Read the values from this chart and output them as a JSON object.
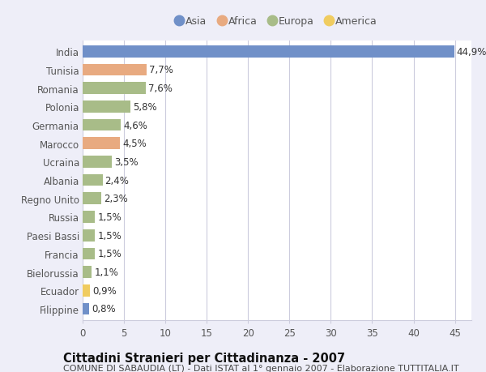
{
  "categories": [
    "India",
    "Tunisia",
    "Romania",
    "Polonia",
    "Germania",
    "Marocco",
    "Ucraina",
    "Albania",
    "Regno Unito",
    "Russia",
    "Paesi Bassi",
    "Francia",
    "Bielorussia",
    "Ecuador",
    "Filippine"
  ],
  "values": [
    44.9,
    7.7,
    7.6,
    5.8,
    4.6,
    4.5,
    3.5,
    2.4,
    2.3,
    1.5,
    1.5,
    1.5,
    1.1,
    0.9,
    0.8
  ],
  "labels": [
    "44,9%",
    "7,7%",
    "7,6%",
    "5,8%",
    "4,6%",
    "4,5%",
    "3,5%",
    "2,4%",
    "2,3%",
    "1,5%",
    "1,5%",
    "1,5%",
    "1,1%",
    "0,9%",
    "0,8%"
  ],
  "continent": [
    "Asia",
    "Africa",
    "Europa",
    "Europa",
    "Europa",
    "Africa",
    "Europa",
    "Europa",
    "Europa",
    "Europa",
    "Europa",
    "Europa",
    "Europa",
    "America",
    "Asia"
  ],
  "colors": {
    "Asia": "#7090c8",
    "Africa": "#e8aa80",
    "Europa": "#a8bc88",
    "America": "#f0cc60"
  },
  "legend_entries": [
    "Asia",
    "Africa",
    "Europa",
    "America"
  ],
  "title": "Cittadini Stranieri per Cittadinanza - 2007",
  "subtitle": "COMUNE DI SABAUDIA (LT) - Dati ISTAT al 1° gennaio 2007 - Elaborazione TUTTITALIA.IT",
  "xlim": [
    0,
    47
  ],
  "xticks": [
    0,
    5,
    10,
    15,
    20,
    25,
    30,
    35,
    40,
    45
  ],
  "background_color": "#eeeef8",
  "plot_bg_color": "#ffffff",
  "grid_color": "#ccccdd",
  "label_fontsize": 8.5,
  "ytick_fontsize": 8.5,
  "xtick_fontsize": 8.5,
  "title_fontsize": 10.5,
  "subtitle_fontsize": 8,
  "legend_fontsize": 9,
  "bar_height": 0.65
}
